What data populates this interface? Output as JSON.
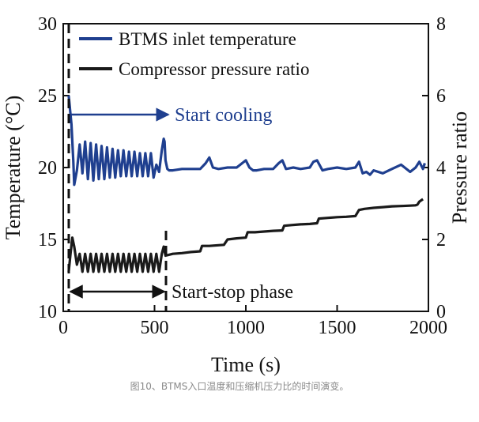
{
  "chart_data": {
    "type": "line",
    "xlabel": "Time (s)",
    "ylabel_left": "Temperature (°C)",
    "ylabel_right": "Pressure ratio",
    "xlim": [
      0,
      2000
    ],
    "ylim_left": [
      10,
      30
    ],
    "ylim_right": [
      0,
      8
    ],
    "x_ticks": [
      "0",
      "500",
      "1000",
      "1500",
      "2000"
    ],
    "y_left_ticks": [
      "10",
      "15",
      "20",
      "25",
      "30"
    ],
    "y_right_ticks": [
      "0",
      "2",
      "4",
      "6",
      "8"
    ],
    "legend_position": "top-left",
    "grid": false,
    "series": [
      {
        "name": "BTMS inlet temperature",
        "axis": "left",
        "color": "#1f3f8f",
        "x": [
          30,
          45,
          55,
          60,
          75,
          90,
          105,
          120,
          135,
          150,
          165,
          180,
          195,
          210,
          225,
          240,
          255,
          270,
          285,
          300,
          315,
          330,
          345,
          360,
          375,
          390,
          405,
          420,
          435,
          450,
          465,
          480,
          495,
          510,
          525,
          540,
          550,
          555,
          560,
          570,
          580,
          590,
          600,
          650,
          700,
          750,
          780,
          800,
          820,
          850,
          900,
          950,
          1000,
          1020,
          1040,
          1060,
          1100,
          1150,
          1180,
          1200,
          1220,
          1260,
          1300,
          1350,
          1370,
          1390,
          1420,
          1450,
          1500,
          1550,
          1600,
          1620,
          1640,
          1660,
          1680,
          1700,
          1750,
          1800,
          1850,
          1900,
          1930,
          1950,
          1970,
          1980
        ],
        "y": [
          25.0,
          23.0,
          20.5,
          18.8,
          19.8,
          21.6,
          19.6,
          21.8,
          19.2,
          21.7,
          19.1,
          21.6,
          19.2,
          21.5,
          19.2,
          21.4,
          19.3,
          21.3,
          19.3,
          21.2,
          19.4,
          21.2,
          19.4,
          21.1,
          19.4,
          21.1,
          19.4,
          21.0,
          19.4,
          21.0,
          19.4,
          21.0,
          19.3,
          20.2,
          19.7,
          21.2,
          22.0,
          21.8,
          20.5,
          19.9,
          19.8,
          19.8,
          19.8,
          19.9,
          19.9,
          19.9,
          20.3,
          20.7,
          20.0,
          19.9,
          20.0,
          20.0,
          20.5,
          20.0,
          19.8,
          19.8,
          19.9,
          19.9,
          20.3,
          20.5,
          19.9,
          20.0,
          19.9,
          20.0,
          20.4,
          20.5,
          19.8,
          19.9,
          20.0,
          19.9,
          20.0,
          20.4,
          19.6,
          19.7,
          19.5,
          19.8,
          19.6,
          19.9,
          20.2,
          19.7,
          20.0,
          20.4,
          19.9,
          20.3
        ]
      },
      {
        "name": "Compressor pressure ratio",
        "axis": "right",
        "color": "#1a1a1a",
        "x": [
          30,
          40,
          50,
          60,
          75,
          90,
          105,
          120,
          135,
          150,
          165,
          180,
          195,
          210,
          225,
          240,
          255,
          270,
          285,
          300,
          315,
          330,
          345,
          360,
          375,
          390,
          405,
          420,
          435,
          450,
          465,
          480,
          495,
          510,
          525,
          540,
          550,
          560,
          600,
          650,
          700,
          750,
          760,
          800,
          850,
          880,
          900,
          950,
          1000,
          1010,
          1050,
          1100,
          1150,
          1200,
          1210,
          1250,
          1300,
          1350,
          1390,
          1400,
          1450,
          1500,
          1550,
          1600,
          1620,
          1650,
          1700,
          1750,
          1800,
          1850,
          1900,
          1930,
          1940,
          1950,
          1970
        ],
        "y": [
          1.1,
          1.6,
          2.05,
          1.8,
          1.3,
          1.6,
          1.1,
          1.6,
          1.1,
          1.6,
          1.1,
          1.6,
          1.1,
          1.6,
          1.1,
          1.6,
          1.1,
          1.6,
          1.1,
          1.6,
          1.1,
          1.6,
          1.1,
          1.6,
          1.1,
          1.6,
          1.1,
          1.6,
          1.1,
          1.6,
          1.1,
          1.6,
          1.1,
          1.6,
          1.1,
          1.6,
          1.8,
          1.55,
          1.6,
          1.62,
          1.65,
          1.67,
          1.82,
          1.82,
          1.84,
          1.85,
          2.0,
          2.03,
          2.05,
          2.2,
          2.2,
          2.22,
          2.24,
          2.25,
          2.38,
          2.4,
          2.42,
          2.43,
          2.45,
          2.58,
          2.6,
          2.62,
          2.63,
          2.65,
          2.82,
          2.85,
          2.88,
          2.9,
          2.92,
          2.93,
          2.94,
          2.95,
          2.97,
          3.05,
          3.12
        ]
      }
    ],
    "annotations": {
      "start_cooling": "Start cooling",
      "start_stop_phase": "Start-stop phase"
    }
  },
  "caption": "图10、BTMS入口温度和压缩机压力比的时间演变。"
}
